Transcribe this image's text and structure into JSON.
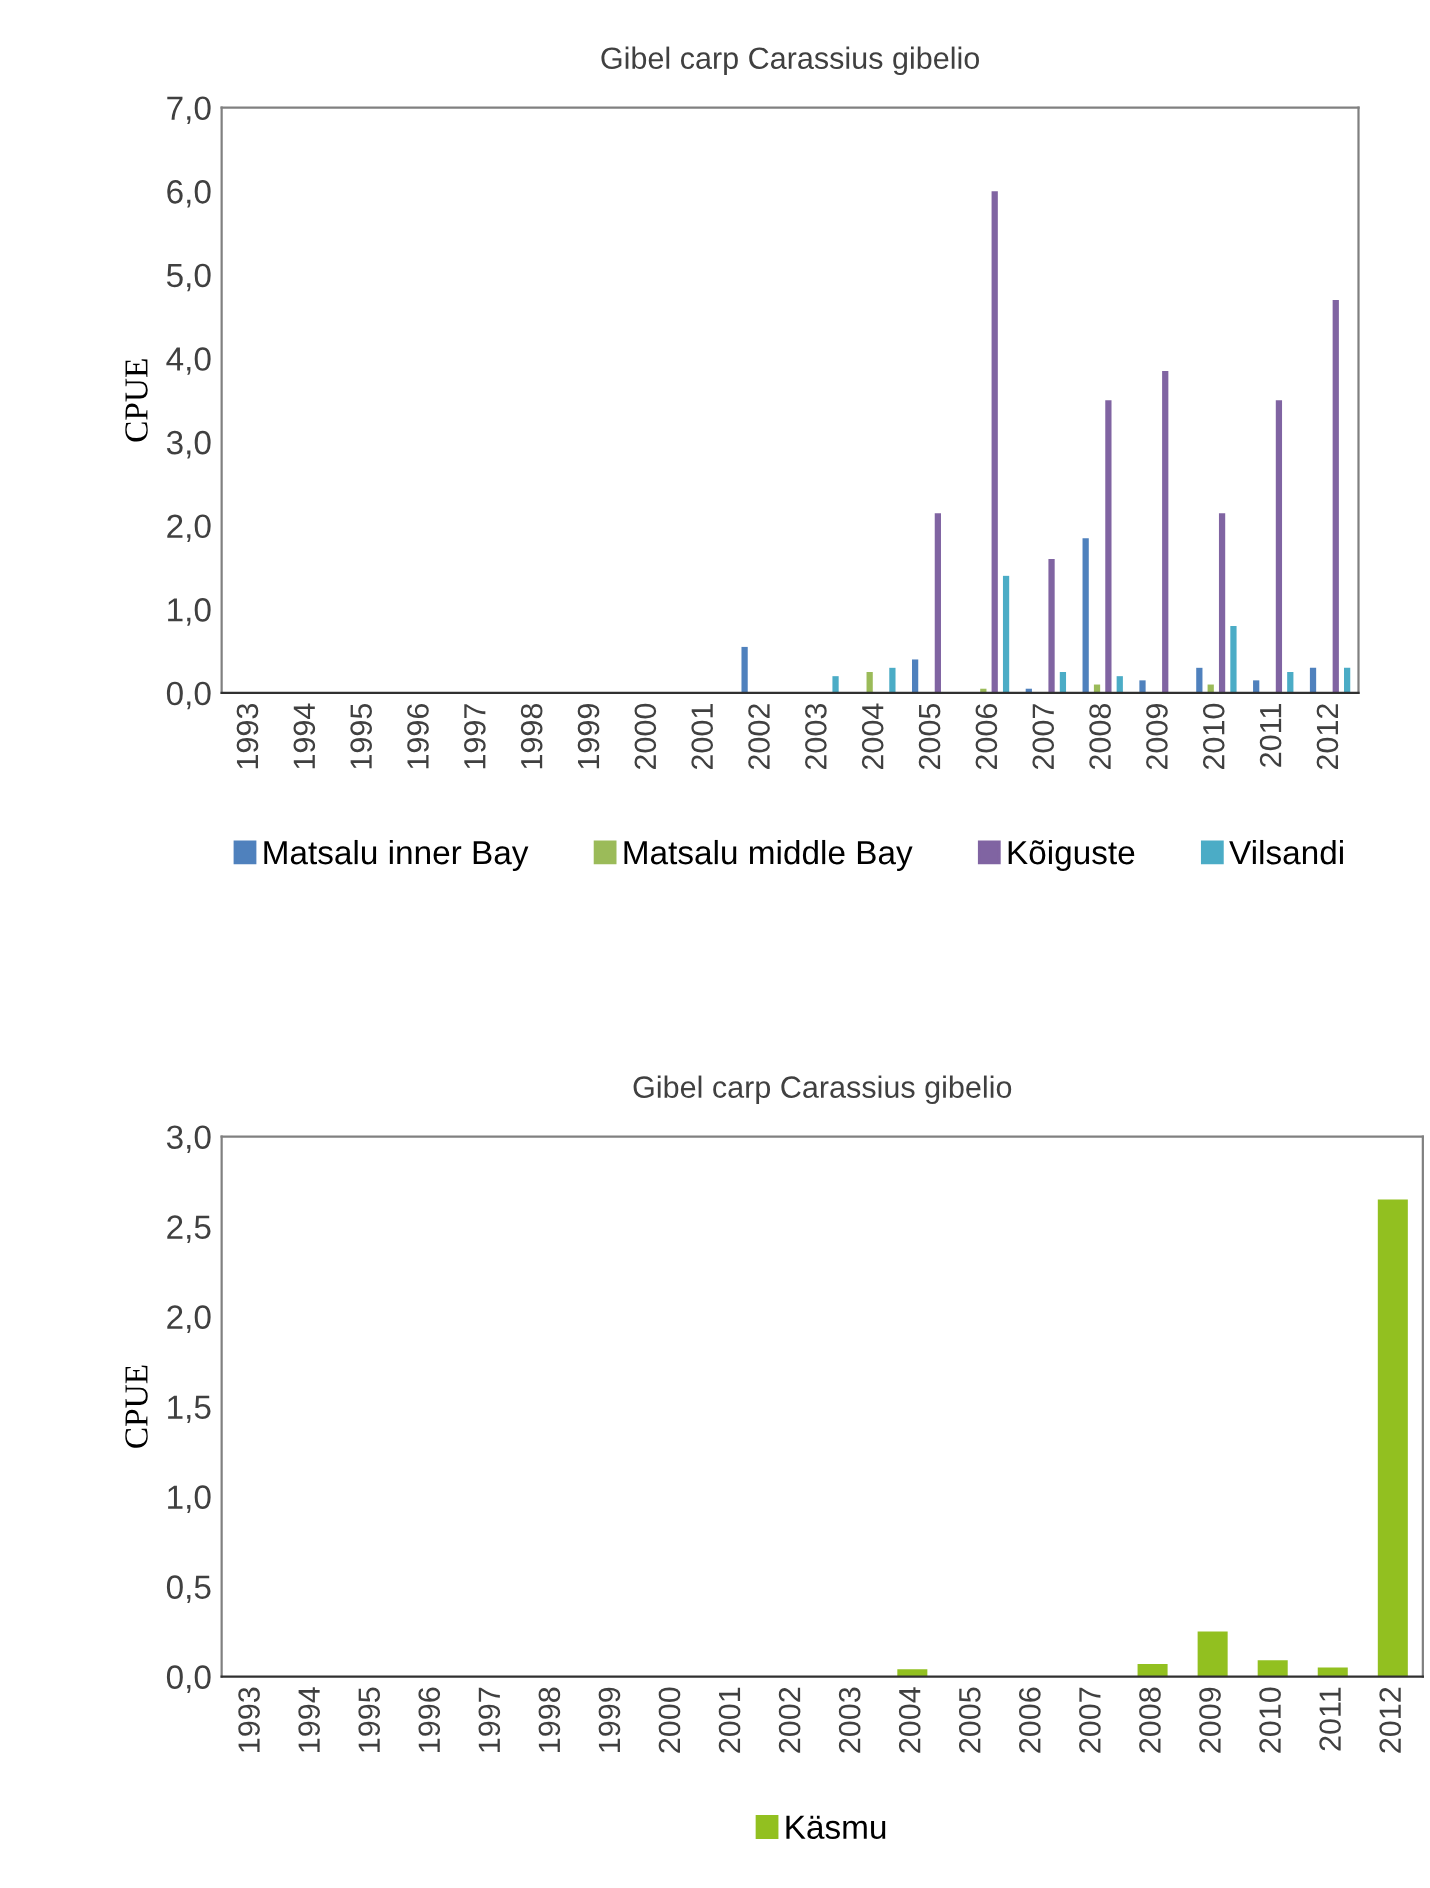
{
  "chart_data": [
    {
      "type": "bar",
      "title": "Gibel carp Carassius gibelio",
      "ylabel": "CPUE",
      "categories": [
        "1993",
        "1994",
        "1995",
        "1996",
        "1997",
        "1998",
        "1999",
        "2000",
        "2001",
        "2002",
        "2003",
        "2004",
        "2005",
        "2006",
        "2007",
        "2008",
        "2009",
        "2010",
        "2011",
        "2012"
      ],
      "series": [
        {
          "name": "Matsalu inner Bay",
          "color": "#4f81bd",
          "values": [
            0,
            0,
            0,
            0,
            0,
            0,
            0,
            0,
            0,
            0.55,
            0,
            0,
            0.4,
            0,
            0.05,
            1.85,
            0.15,
            0.3,
            0.15,
            0.3
          ]
        },
        {
          "name": "Matsalu middle Bay",
          "color": "#9bbb59",
          "values": [
            0,
            0,
            0,
            0,
            0,
            0,
            0,
            0,
            0,
            0,
            0,
            0.25,
            0,
            0.05,
            0,
            0.1,
            0,
            0.1,
            0,
            0
          ]
        },
        {
          "name": "Kõiguste",
          "color": "#8064a2",
          "values": [
            0,
            0,
            0,
            0,
            0,
            0,
            0,
            0,
            0,
            0,
            0,
            0,
            2.15,
            6.0,
            1.6,
            3.5,
            3.85,
            2.15,
            3.5,
            4.7
          ]
        },
        {
          "name": "Vilsandi",
          "color": "#4bacc6",
          "values": [
            0,
            0,
            0,
            0,
            0,
            0,
            0,
            0,
            0,
            0,
            0.2,
            0.3,
            0,
            1.4,
            0.25,
            0.2,
            0,
            0.8,
            0.25,
            0.3
          ]
        }
      ],
      "ylim": [
        0,
        7
      ],
      "yticks": [
        {
          "value": 0,
          "label": "0,0"
        },
        {
          "value": 1,
          "label": "1,0"
        },
        {
          "value": 2,
          "label": "2,0"
        },
        {
          "value": 3,
          "label": "3,0"
        },
        {
          "value": 4,
          "label": "4,0"
        },
        {
          "value": 5,
          "label": "5,0"
        },
        {
          "value": 6,
          "label": "6,0"
        },
        {
          "value": 7,
          "label": "7,0"
        }
      ],
      "grid": false,
      "legend": "bottom"
    },
    {
      "type": "bar",
      "title": "Gibel carp Carassius gibelio",
      "ylabel": "CPUE",
      "categories": [
        "1993",
        "1994",
        "1995",
        "1996",
        "1997",
        "1998",
        "1999",
        "2000",
        "2001",
        "2002",
        "2003",
        "2004",
        "2005",
        "2006",
        "2007",
        "2008",
        "2009",
        "2010",
        "2011",
        "2012"
      ],
      "series": [
        {
          "name": "Käsmu",
          "color": "#92c020",
          "values": [
            0,
            0,
            0,
            0,
            0,
            0,
            0,
            0,
            0,
            0,
            0,
            0.04,
            0,
            0,
            0,
            0.07,
            0.25,
            0.09,
            0.05,
            2.65
          ]
        }
      ],
      "ylim": [
        0,
        3
      ],
      "yticks": [
        {
          "value": 0,
          "label": "0,0"
        },
        {
          "value": 0.5,
          "label": "0,5"
        },
        {
          "value": 1,
          "label": "1,0"
        },
        {
          "value": 1.5,
          "label": "1,5"
        },
        {
          "value": 2,
          "label": "2,0"
        },
        {
          "value": 2.5,
          "label": "2,5"
        },
        {
          "value": 3,
          "label": "3,0"
        }
      ],
      "grid": false,
      "legend": "bottom"
    }
  ]
}
